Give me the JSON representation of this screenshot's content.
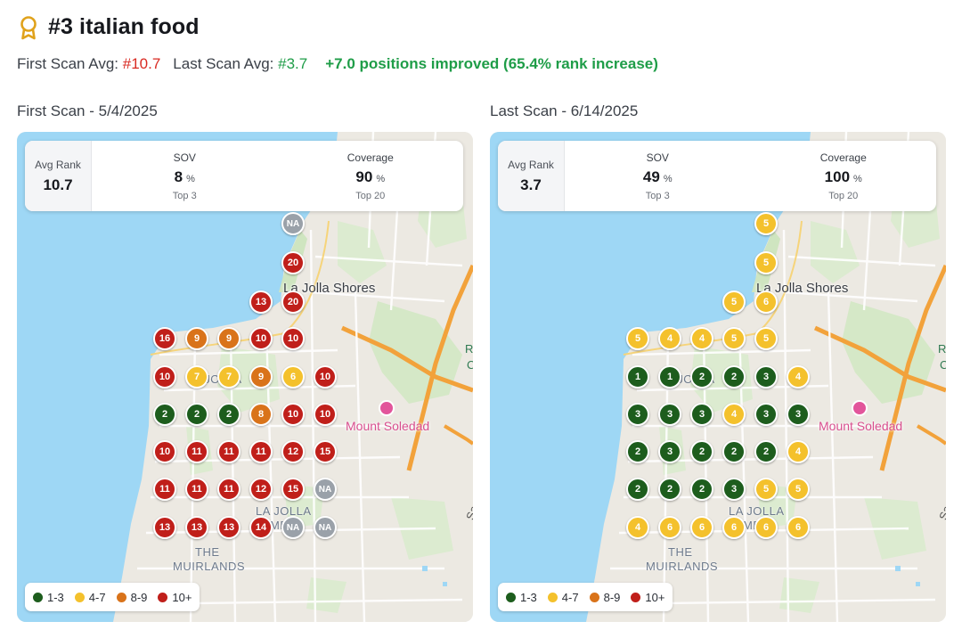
{
  "header": {
    "title": "#3 italian food",
    "first_label": "First Scan Avg:",
    "first_value": "#10.7",
    "last_label": "Last Scan Avg:",
    "last_value": "#3.7",
    "improvement": "+7.0 positions improved (65.4% rank increase)"
  },
  "scans": [
    {
      "title": "First Scan - 5/4/2025",
      "stats": {
        "avg_rank_label": "Avg Rank",
        "avg_rank": "10.7",
        "sov_label": "SOV",
        "sov": "8",
        "sov_unit": "%",
        "sov_sub": "Top 3",
        "coverage_label": "Coverage",
        "coverage": "90",
        "coverage_unit": "%",
        "coverage_sub": "Top 20"
      },
      "grid": [
        [
          "",
          "",
          "",
          "",
          "NA"
        ],
        [
          "",
          "",
          "",
          "",
          "20"
        ],
        [
          "",
          "",
          "",
          "13",
          "20"
        ],
        [
          "16",
          "9",
          "9",
          "10",
          "10"
        ],
        [
          "10",
          "7",
          "7",
          "9",
          "6",
          "10"
        ],
        [
          "2",
          "2",
          "2",
          "8",
          "10",
          "10"
        ],
        [
          "10",
          "11",
          "11",
          "11",
          "12",
          "15"
        ],
        [
          "11",
          "11",
          "11",
          "12",
          "15",
          "NA"
        ],
        [
          "13",
          "13",
          "13",
          "14",
          "NA",
          "NA"
        ]
      ]
    },
    {
      "title": "Last Scan - 6/14/2025",
      "stats": {
        "avg_rank_label": "Avg Rank",
        "avg_rank": "3.7",
        "sov_label": "SOV",
        "sov": "49",
        "sov_unit": "%",
        "sov_sub": "Top 3",
        "coverage_label": "Coverage",
        "coverage": "100",
        "coverage_unit": "%",
        "coverage_sub": "Top 20"
      },
      "grid": [
        [
          "",
          "",
          "",
          "",
          "5"
        ],
        [
          "",
          "",
          "",
          "",
          "5"
        ],
        [
          "",
          "",
          "",
          "5",
          "6"
        ],
        [
          "5",
          "4",
          "4",
          "5",
          "5"
        ],
        [
          "1",
          "1",
          "2",
          "2",
          "3",
          "4"
        ],
        [
          "3",
          "3",
          "3",
          "4",
          "3",
          "3"
        ],
        [
          "2",
          "3",
          "2",
          "2",
          "2",
          "4"
        ],
        [
          "2",
          "2",
          "2",
          "3",
          "5",
          "5"
        ],
        [
          "4",
          "6",
          "6",
          "6",
          "6",
          "6"
        ]
      ]
    }
  ],
  "map_labels": {
    "town": "La Jolla Shores",
    "poi": "Mount Soledad",
    "area1": "LA JOLLA",
    "area2": "THE",
    "area3": "MUIRLANDS",
    "area4": "LA JOLLA",
    "area5": "ME",
    "frag_r": "R",
    "frag_c": "C",
    "frag_sa": "Sa"
  },
  "legend": [
    {
      "label": "1-3",
      "color": "#1d5d1d"
    },
    {
      "label": "4-7",
      "color": "#f4c12c"
    },
    {
      "label": "8-9",
      "color": "#d9731a"
    },
    {
      "label": "10+",
      "color": "#c01f1a"
    }
  ],
  "colors": {
    "rank_1_3": "#1d5d1d",
    "rank_4_7": "#f4c12c",
    "rank_8_9": "#d9731a",
    "rank_10_plus": "#c01f1a",
    "not_ranked": "#9aa1a9",
    "accent_award": "#e0a21b"
  }
}
